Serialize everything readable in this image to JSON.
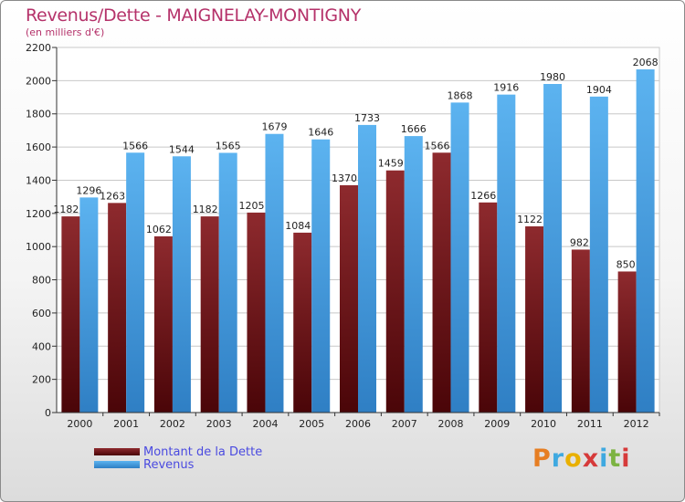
{
  "chart_data": {
    "type": "bar",
    "title": "Revenus/Dette - MAIGNELAY-MONTIGNY",
    "subtitle": "(en milliers d'€)",
    "categories": [
      "2000",
      "2001",
      "2002",
      "2003",
      "2004",
      "2005",
      "2006",
      "2007",
      "2008",
      "2009",
      "2010",
      "2011",
      "2012"
    ],
    "series": [
      {
        "name": "Montant de la Dette",
        "color": "#8b1a1a",
        "values": [
          1182,
          1263,
          1062,
          1182,
          1205,
          1084,
          1370,
          1459,
          1566,
          1266,
          1122,
          982,
          850
        ]
      },
      {
        "name": "Revenus",
        "color": "#3f9ee6",
        "values": [
          1296,
          1566,
          1544,
          1565,
          1679,
          1646,
          1733,
          1666,
          1868,
          1916,
          1980,
          1904,
          2068
        ]
      }
    ],
    "ylim": [
      0,
      2200
    ],
    "yticks": [
      0,
      200,
      400,
      600,
      800,
      1000,
      1200,
      1400,
      1600,
      1800,
      2000,
      2200
    ],
    "grid": true,
    "legend_position": "bottom-left"
  },
  "logo": {
    "letters": [
      "P",
      "r",
      "o",
      "x",
      "i",
      "t",
      "i"
    ],
    "colors": [
      "#e67e22",
      "#3fa9e0",
      "#e9b000",
      "#d63a3a",
      "#3fa9e0",
      "#7cb342",
      "#d63a3a"
    ]
  }
}
